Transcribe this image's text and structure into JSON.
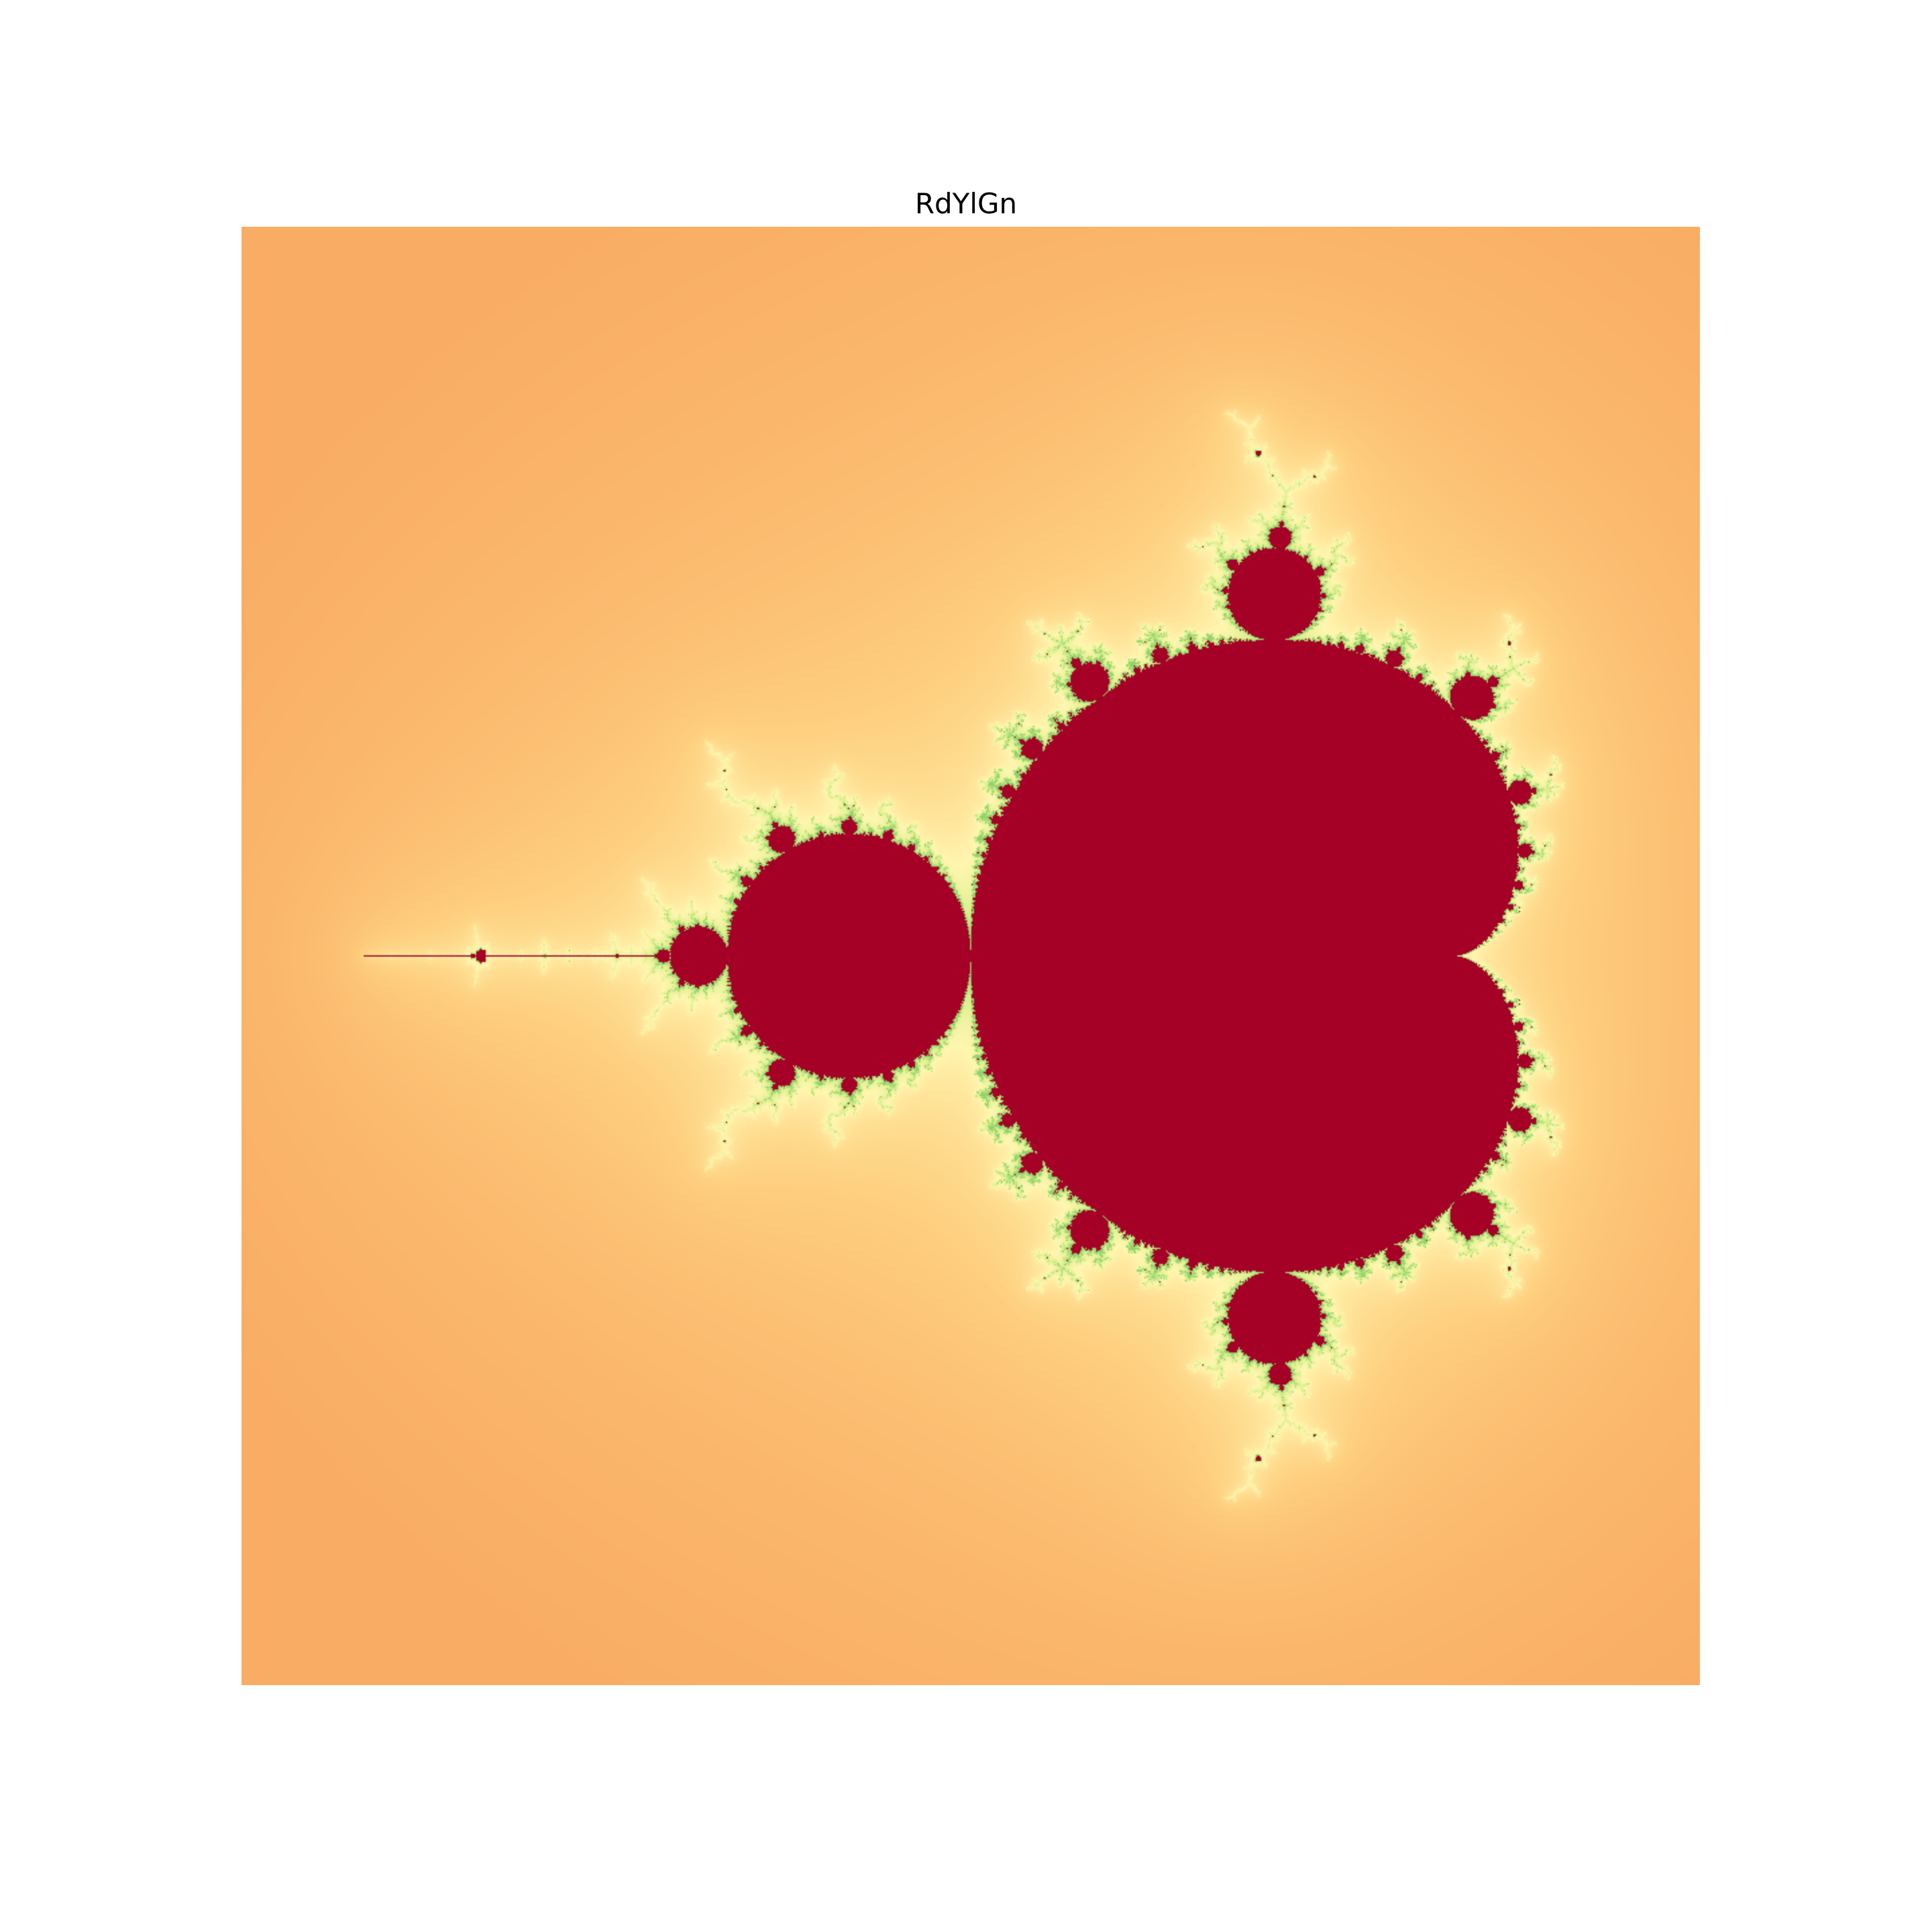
{
  "figure": {
    "title": "RdYlGn"
  },
  "fractal": {
    "type": "mandelbrot",
    "colormap": "RdYlGn",
    "set_color": "#a50026",
    "outer_color": "#f9ad64",
    "edge_color": "#fff6b0",
    "filament_color": "#8fd16c",
    "real_range": [
      -2.25,
      0.75
    ],
    "imag_range": [
      -1.5,
      1.5
    ],
    "max_iterations": 256,
    "axes_visible": false
  }
}
